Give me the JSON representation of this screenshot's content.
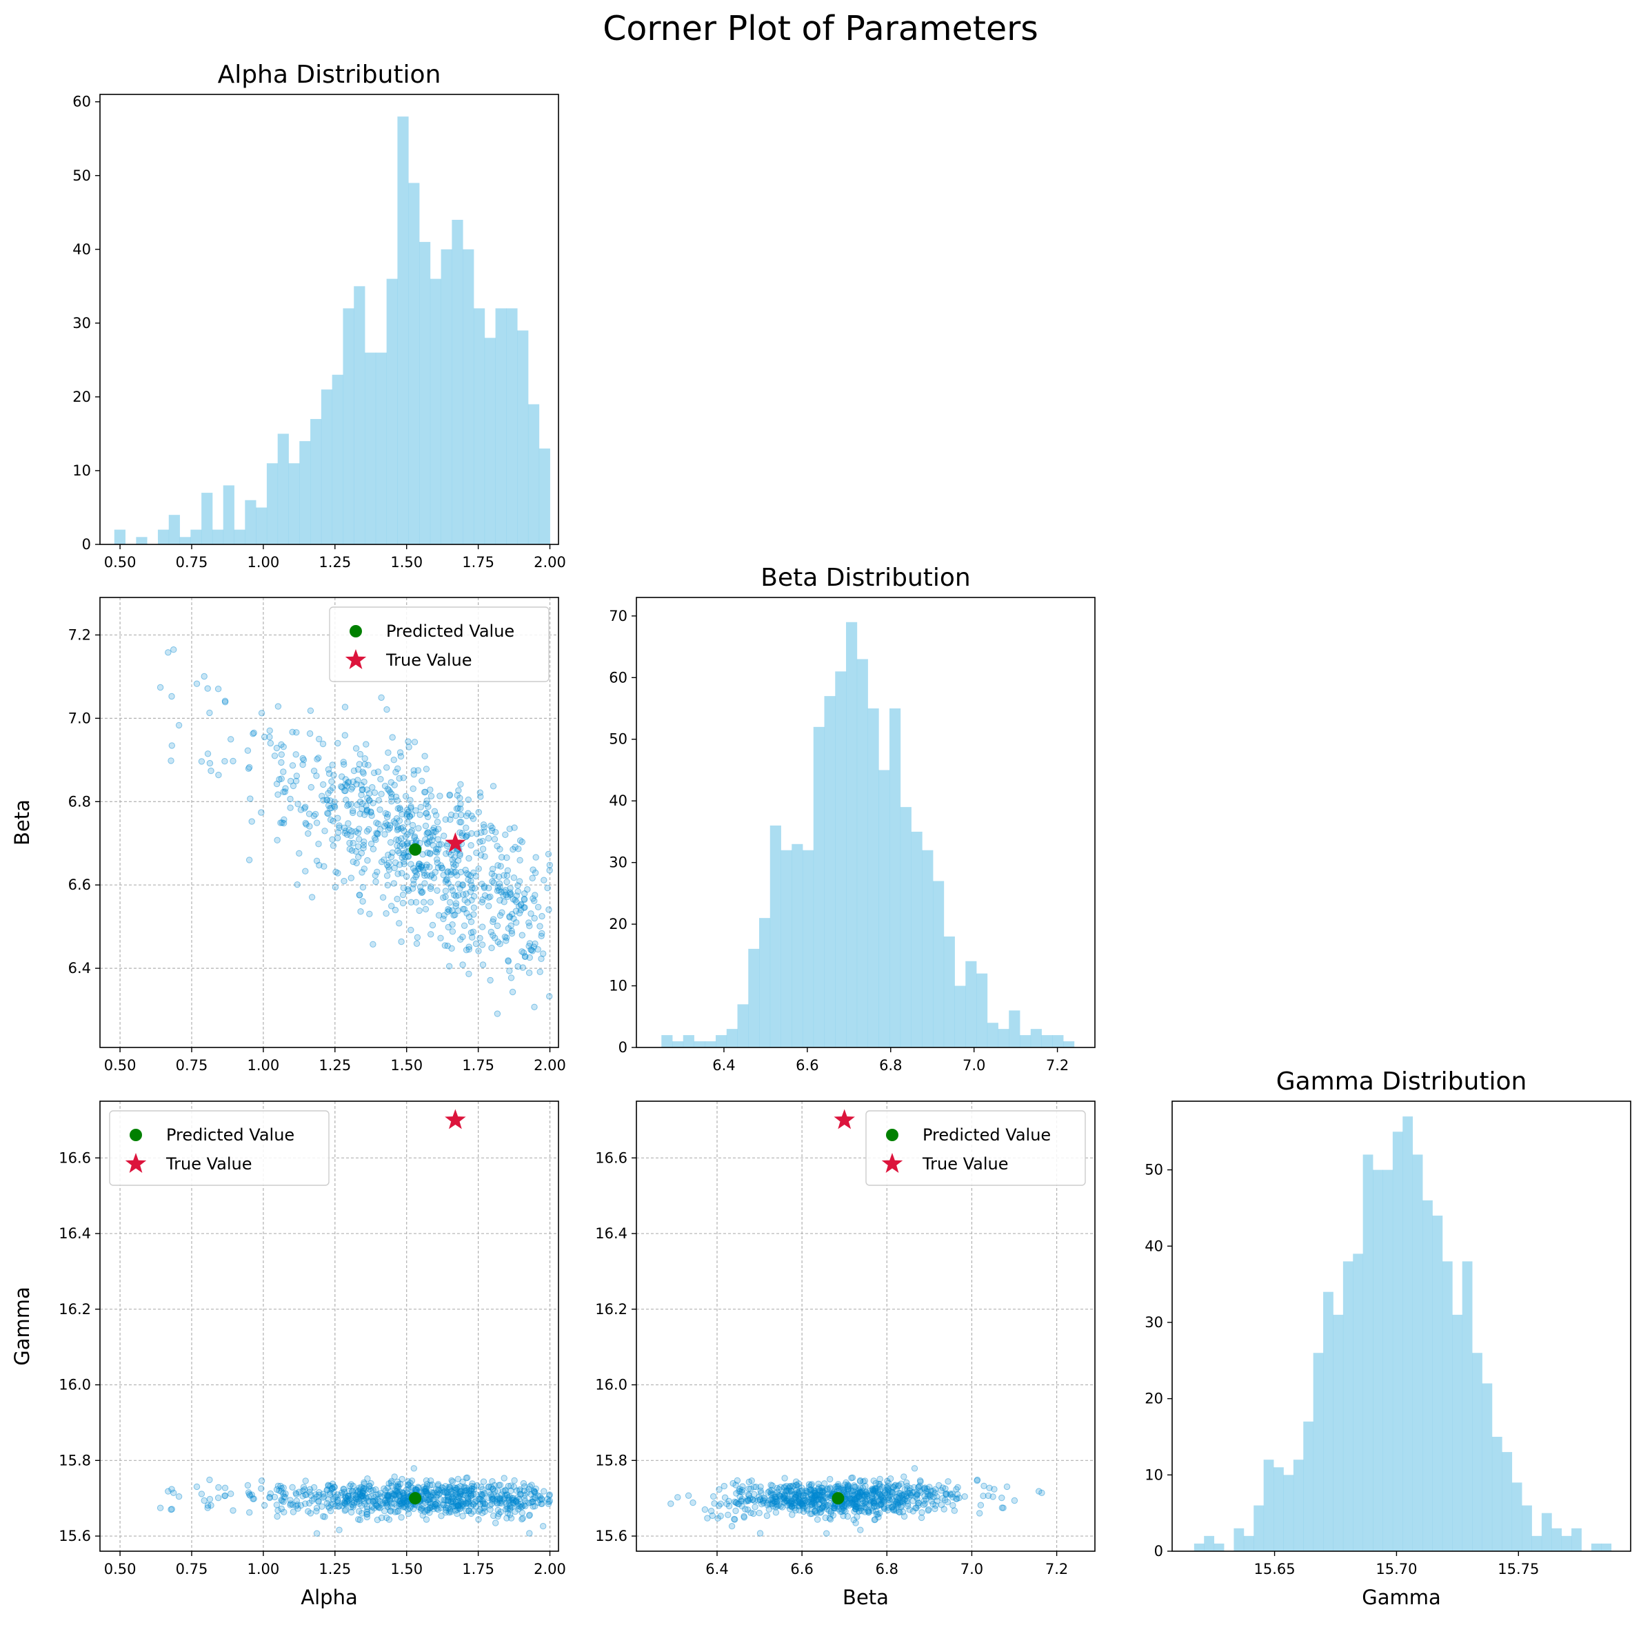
{
  "title": "Corner Plot of Parameters",
  "colors": {
    "hist": "#87CEEB",
    "scatter": "#0288D1",
    "predicted": "#008000",
    "true": "#DC143C",
    "grid": "#b0b0b0"
  },
  "legend": {
    "predicted": "Predicted Value",
    "true": "True Value"
  },
  "chart_data": [
    {
      "id": "alpha-hist",
      "type": "bar",
      "title": "Alpha Distribution",
      "xlabel": "",
      "ylabel": "",
      "xlim": [
        0.43,
        2.03
      ],
      "ylim": [
        0,
        61
      ],
      "xticks": [
        0.5,
        0.75,
        1.0,
        1.25,
        1.5,
        1.75,
        2.0
      ],
      "xtick_labels": [
        "0.50",
        "0.75",
        "1.00",
        "1.25",
        "1.50",
        "1.75",
        "2.00"
      ],
      "yticks": [
        0,
        10,
        20,
        30,
        40,
        50,
        60
      ],
      "ytick_labels": [
        "0",
        "10",
        "20",
        "30",
        "40",
        "50",
        "60"
      ],
      "bin_range": [
        0.48,
        2.0
      ],
      "values": [
        2,
        0,
        1,
        0,
        2,
        4,
        1,
        2,
        7,
        2,
        8,
        2,
        6,
        5,
        11,
        15,
        11,
        14,
        17,
        21,
        23,
        32,
        35,
        26,
        26,
        36,
        58,
        49,
        41,
        36,
        40,
        44,
        40,
        32,
        28,
        32,
        32,
        29,
        19,
        13
      ],
      "grid": false
    },
    {
      "id": "beta-hist",
      "type": "bar",
      "title": "Beta Distribution",
      "xlabel": "",
      "ylabel": "",
      "xlim": [
        6.19,
        7.29
      ],
      "ylim": [
        0,
        73
      ],
      "xticks": [
        6.4,
        6.6,
        6.8,
        7.0,
        7.2
      ],
      "xtick_labels": [
        "6.4",
        "6.6",
        "6.8",
        "7.0",
        "7.2"
      ],
      "yticks": [
        0,
        10,
        20,
        30,
        40,
        50,
        60,
        70
      ],
      "ytick_labels": [
        "0",
        "10",
        "20",
        "30",
        "40",
        "50",
        "60",
        "70"
      ],
      "bin_range": [
        6.25,
        7.24
      ],
      "values": [
        2,
        1,
        2,
        1,
        1,
        2,
        3,
        7,
        16,
        21,
        36,
        32,
        33,
        32,
        52,
        57,
        61,
        69,
        63,
        55,
        45,
        55,
        39,
        35,
        32,
        27,
        18,
        10,
        14,
        12,
        4,
        3,
        6,
        2,
        3,
        2,
        2,
        1
      ],
      "grid": false
    },
    {
      "id": "gamma-hist",
      "type": "bar",
      "title": "Gamma Distribution",
      "xlabel": "Gamma",
      "ylabel": "",
      "xlim": [
        15.608,
        15.796
      ],
      "ylim": [
        0,
        59
      ],
      "xticks": [
        15.65,
        15.7,
        15.75
      ],
      "xtick_labels": [
        "15.65",
        "15.70",
        "15.75"
      ],
      "yticks": [
        0,
        10,
        20,
        30,
        40,
        50
      ],
      "ytick_labels": [
        "0",
        "10",
        "20",
        "30",
        "40",
        "50"
      ],
      "bin_range": [
        15.617,
        15.788
      ],
      "values": [
        1,
        2,
        1,
        0,
        3,
        2,
        6,
        12,
        11,
        10,
        12,
        17,
        26,
        34,
        31,
        38,
        39,
        52,
        50,
        50,
        55,
        57,
        52,
        46,
        44,
        38,
        31,
        38,
        26,
        22,
        15,
        13,
        9,
        6,
        2,
        5,
        3,
        2,
        3,
        0,
        1,
        1
      ],
      "grid": false
    },
    {
      "id": "alpha-beta-scatter",
      "type": "scatter",
      "title": "",
      "xlabel": "",
      "ylabel": "Beta",
      "xlim": [
        0.43,
        2.03
      ],
      "ylim": [
        6.21,
        7.29
      ],
      "xticks": [
        0.5,
        0.75,
        1.0,
        1.25,
        1.5,
        1.75,
        2.0
      ],
      "xtick_labels": [
        "0.50",
        "0.75",
        "1.00",
        "1.25",
        "1.50",
        "1.75",
        "2.00"
      ],
      "yticks": [
        6.4,
        6.6,
        6.8,
        7.0,
        7.2
      ],
      "ytick_labels": [
        "6.4",
        "6.6",
        "6.8",
        "7.0",
        "7.2"
      ],
      "predicted": [
        1.53,
        6.685
      ],
      "true": [
        1.67,
        6.7
      ],
      "legend_position": "upper right",
      "grid": true,
      "x_param": "alpha",
      "y_param": "beta"
    },
    {
      "id": "alpha-gamma-scatter",
      "type": "scatter",
      "title": "",
      "xlabel": "Alpha",
      "ylabel": "Gamma",
      "xlim": [
        0.43,
        2.03
      ],
      "ylim": [
        15.56,
        16.75
      ],
      "xticks": [
        0.5,
        0.75,
        1.0,
        1.25,
        1.5,
        1.75,
        2.0
      ],
      "xtick_labels": [
        "0.50",
        "0.75",
        "1.00",
        "1.25",
        "1.50",
        "1.75",
        "2.00"
      ],
      "yticks": [
        15.6,
        15.8,
        16.0,
        16.2,
        16.4,
        16.6
      ],
      "ytick_labels": [
        "15.6",
        "15.8",
        "16.0",
        "16.2",
        "16.4",
        "16.6"
      ],
      "predicted": [
        1.53,
        15.7
      ],
      "true": [
        1.67,
        16.7
      ],
      "legend_position": "upper left",
      "grid": true,
      "x_param": "alpha",
      "y_param": "gamma"
    },
    {
      "id": "beta-gamma-scatter",
      "type": "scatter",
      "title": "",
      "xlabel": "Beta",
      "ylabel": "",
      "xlim": [
        6.21,
        7.29
      ],
      "ylim": [
        15.56,
        16.75
      ],
      "xticks": [
        6.4,
        6.6,
        6.8,
        7.0,
        7.2
      ],
      "xtick_labels": [
        "6.4",
        "6.6",
        "6.8",
        "7.0",
        "7.2"
      ],
      "yticks": [
        15.6,
        15.8,
        16.0,
        16.2,
        16.4,
        16.6
      ],
      "ytick_labels": [
        "15.6",
        "15.8",
        "16.0",
        "16.2",
        "16.4",
        "16.6"
      ],
      "predicted": [
        6.685,
        15.7
      ],
      "true": [
        6.7,
        16.7
      ],
      "legend_position": "upper right",
      "grid": true,
      "x_param": "beta",
      "y_param": "gamma"
    }
  ]
}
